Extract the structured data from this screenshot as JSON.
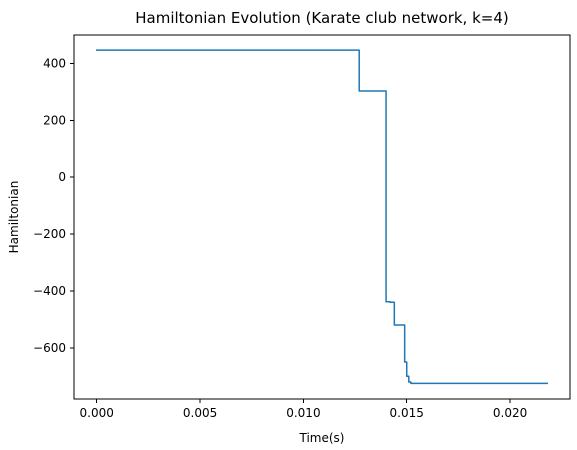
{
  "chart_data": {
    "type": "line",
    "title": "Hamiltonian Evolution (Karate club network, k=4)",
    "xlabel": "Time(s)",
    "ylabel": "Hamiltonian",
    "xlim": [
      -0.0011,
      0.0229
    ],
    "ylim": [
      -780,
      500
    ],
    "x_ticks": [
      0.0,
      0.005,
      0.01,
      0.015,
      0.02
    ],
    "x_tick_labels": [
      "0.000",
      "0.005",
      "0.010",
      "0.015",
      "0.020"
    ],
    "y_ticks": [
      -600,
      -400,
      -200,
      0,
      200,
      400
    ],
    "y_tick_labels": [
      "−600",
      "−400",
      "−200",
      "0",
      "200",
      "400"
    ],
    "grid": false,
    "series": [
      {
        "color": "#1f77b4",
        "x": [
          0.0,
          0.0127,
          0.0127,
          0.014,
          0.014,
          0.0142,
          0.0142,
          0.0144,
          0.0144,
          0.0149,
          0.0149,
          0.015,
          0.015,
          0.0151,
          0.0151,
          0.0152,
          0.0152,
          0.0218
        ],
        "y": [
          447,
          447,
          303,
          303,
          -438,
          -438,
          -440,
          -440,
          -520,
          -520,
          -650,
          -650,
          -700,
          -700,
          -720,
          -720,
          -725,
          -725
        ]
      }
    ]
  }
}
